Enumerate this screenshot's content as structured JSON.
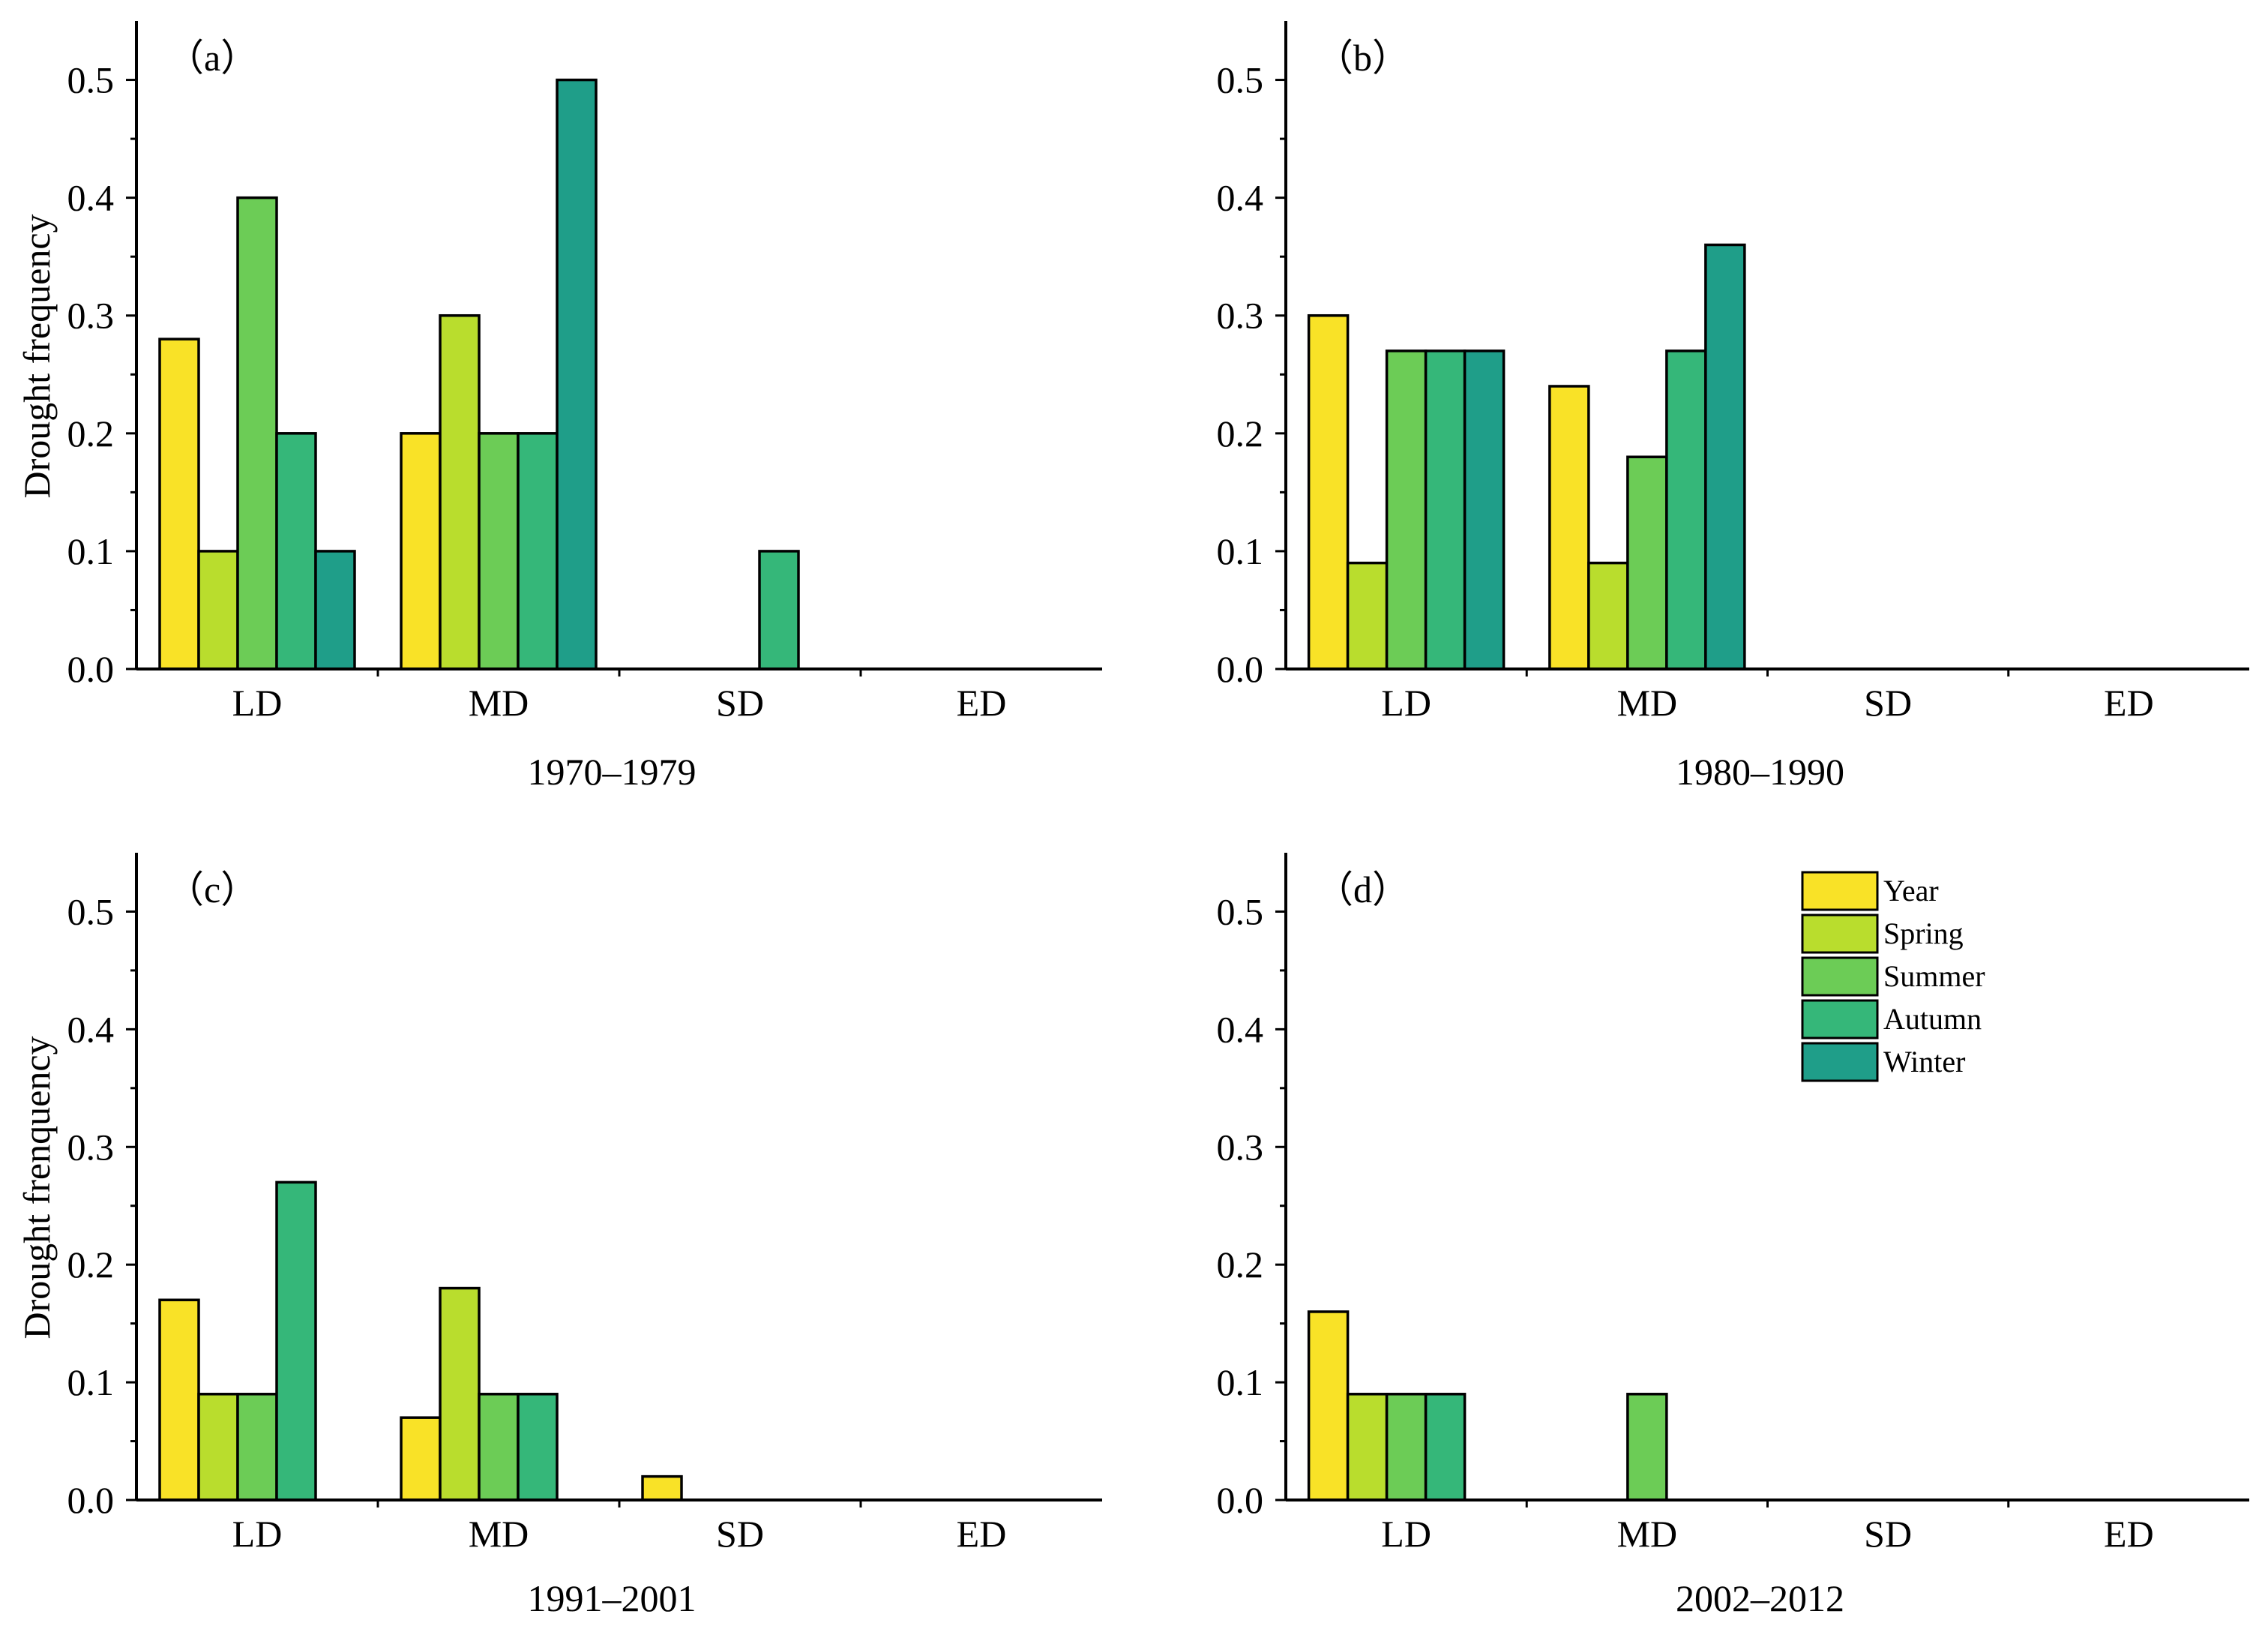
{
  "figure": {
    "series": [
      {
        "name": "Year",
        "color": "#F9E227"
      },
      {
        "name": "Spring",
        "color": "#B9DD2D"
      },
      {
        "name": "Summer",
        "color": "#6CCC56"
      },
      {
        "name": "Autumn",
        "color": "#35B779"
      },
      {
        "name": "Winter",
        "color": "#1F9E89"
      }
    ],
    "ylabel_a": "Drought frequency",
    "ylabel_c": "Drought frenquency"
  },
  "chart_data": [
    {
      "type": "bar",
      "tag": "（a）",
      "title": "1970–1979",
      "xlabel": "1970–1979",
      "ylabel": "Drought frequency",
      "ylim": [
        0,
        0.55
      ],
      "yticks": [
        "0.0",
        "0.1",
        "0.2",
        "0.3",
        "0.4",
        "0.5"
      ],
      "categories": [
        "LD",
        "MD",
        "SD",
        "ED"
      ],
      "series": [
        {
          "name": "Year",
          "values": [
            0.28,
            0.2,
            0,
            0
          ]
        },
        {
          "name": "Spring",
          "values": [
            0.1,
            0.3,
            0,
            0
          ]
        },
        {
          "name": "Summer",
          "values": [
            0.4,
            0.2,
            0,
            0
          ]
        },
        {
          "name": "Autumn",
          "values": [
            0.2,
            0.2,
            0.1,
            0
          ]
        },
        {
          "name": "Winter",
          "values": [
            0.1,
            0.5,
            0,
            0
          ]
        }
      ]
    },
    {
      "type": "bar",
      "tag": "（b）",
      "title": "1980–1990",
      "xlabel": "1980–1990",
      "ylabel": "",
      "ylim": [
        0,
        0.55
      ],
      "yticks": [
        "0.0",
        "0.1",
        "0.2",
        "0.3",
        "0.4",
        "0.5"
      ],
      "categories": [
        "LD",
        "MD",
        "SD",
        "ED"
      ],
      "series": [
        {
          "name": "Year",
          "values": [
            0.3,
            0.24,
            0,
            0
          ]
        },
        {
          "name": "Spring",
          "values": [
            0.09,
            0.09,
            0,
            0
          ]
        },
        {
          "name": "Summer",
          "values": [
            0.27,
            0.18,
            0,
            0
          ]
        },
        {
          "name": "Autumn",
          "values": [
            0.27,
            0.27,
            0,
            0
          ]
        },
        {
          "name": "Winter",
          "values": [
            0.27,
            0.36,
            0,
            0
          ]
        }
      ]
    },
    {
      "type": "bar",
      "tag": "（c）",
      "title": "1991–2001",
      "xlabel": "1991–2001",
      "ylabel": "Drought frenquency",
      "ylim": [
        0,
        0.55
      ],
      "yticks": [
        "0.0",
        "0.1",
        "0.2",
        "0.3",
        "0.4",
        "0.5"
      ],
      "categories": [
        "LD",
        "MD",
        "SD",
        "ED"
      ],
      "series": [
        {
          "name": "Year",
          "values": [
            0.17,
            0.07,
            0.02,
            0
          ]
        },
        {
          "name": "Spring",
          "values": [
            0.09,
            0.18,
            0,
            0
          ]
        },
        {
          "name": "Summer",
          "values": [
            0.09,
            0.09,
            0,
            0
          ]
        },
        {
          "name": "Autumn",
          "values": [
            0.27,
            0.09,
            0,
            0
          ]
        },
        {
          "name": "Winter",
          "values": [
            0,
            0,
            0,
            0
          ]
        }
      ]
    },
    {
      "type": "bar",
      "tag": "（d）",
      "title": "2002–2012",
      "xlabel": "2002–2012",
      "ylabel": "",
      "ylim": [
        0,
        0.55
      ],
      "yticks": [
        "0.0",
        "0.1",
        "0.2",
        "0.3",
        "0.4",
        "0.5"
      ],
      "categories": [
        "LD",
        "MD",
        "SD",
        "ED"
      ],
      "legend": "top-right",
      "series": [
        {
          "name": "Year",
          "values": [
            0.16,
            0,
            0,
            0
          ]
        },
        {
          "name": "Spring",
          "values": [
            0.09,
            0,
            0,
            0
          ]
        },
        {
          "name": "Summer",
          "values": [
            0.09,
            0.09,
            0,
            0
          ]
        },
        {
          "name": "Autumn",
          "values": [
            0.09,
            0,
            0,
            0
          ]
        },
        {
          "name": "Winter",
          "values": [
            0,
            0,
            0,
            0
          ]
        }
      ]
    }
  ]
}
